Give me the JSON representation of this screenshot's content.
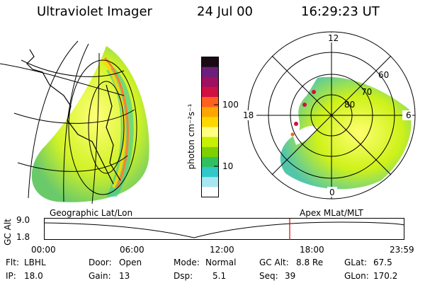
{
  "header": {
    "instrument": "Ultraviolet Imager",
    "date": "24 Jul 00",
    "time": "16:29:23 UT"
  },
  "colorbar": {
    "unit_label": "photon cm⁻²s⁻¹",
    "ticks": [
      "100",
      "10"
    ],
    "colors": [
      "#1a0a14",
      "#6b1f7a",
      "#a01060",
      "#d01040",
      "#ff6020",
      "#ffa500",
      "#ffd800",
      "#ffff80",
      "#c8f000",
      "#7ed000",
      "#30c060",
      "#30c8c8",
      "#a8e6f0",
      "#ffffff"
    ]
  },
  "left_panel": {
    "label": "Geographic Lat/Lon"
  },
  "right_panel": {
    "label": "Apex MLat/MLT",
    "mlt_labels": [
      "12",
      "18",
      "6",
      "0"
    ],
    "lat_labels": [
      "60",
      "70",
      "80"
    ]
  },
  "timeline": {
    "axis_label": "GC Alt",
    "y_ticks": [
      "9.0",
      "1.8"
    ],
    "x_ticks": [
      "00:00",
      "06:00",
      "12:00",
      "18:00",
      "23:59"
    ],
    "marker_time": "16:29"
  },
  "info": {
    "flt_label": "Flt:",
    "flt_value": "LBHL",
    "ip_label": "IP:",
    "ip_value": "18.0",
    "door_label": "Door:",
    "door_value": "Open",
    "gain_label": "Gain:",
    "gain_value": "13",
    "mode_label": "Mode:",
    "mode_value": "Normal",
    "dsp_label": "Dsp:",
    "dsp_value": "5.1",
    "gcalt_label": "GC Alt:",
    "gcalt_value": "8.8 Re",
    "seq_label": "Seq:",
    "seq_value": "39",
    "glat_label": "GLat:",
    "glat_value": "67.5",
    "glon_label": "GLon:",
    "glon_value": "170.2"
  }
}
